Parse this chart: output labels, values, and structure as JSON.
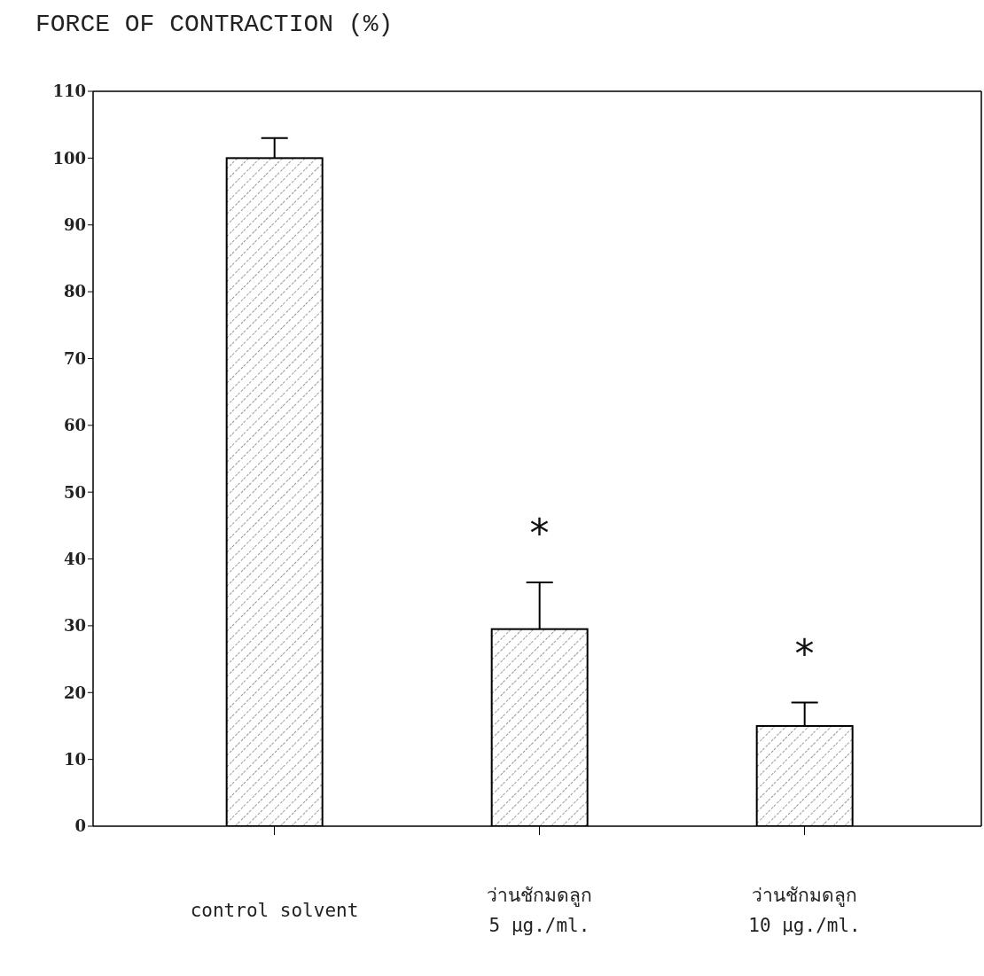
{
  "chart_data": {
    "type": "bar",
    "ylabel": "FORCE OF CONTRACTION (%)",
    "categories": [
      "control solvent",
      "ว่านชักมดลูก 5 μg./ml.",
      "ว่านชักมดลูก 10 μg./ml."
    ],
    "values": [
      100,
      29.5,
      15
    ],
    "errors": [
      3,
      7,
      3.5
    ],
    "color": "#000000",
    "ylim": [
      0,
      110
    ],
    "yticks": [
      0,
      10,
      20,
      30,
      40,
      50,
      60,
      70,
      80,
      90,
      100,
      110
    ],
    "annotations": [
      "*",
      "*"
    ]
  }
}
